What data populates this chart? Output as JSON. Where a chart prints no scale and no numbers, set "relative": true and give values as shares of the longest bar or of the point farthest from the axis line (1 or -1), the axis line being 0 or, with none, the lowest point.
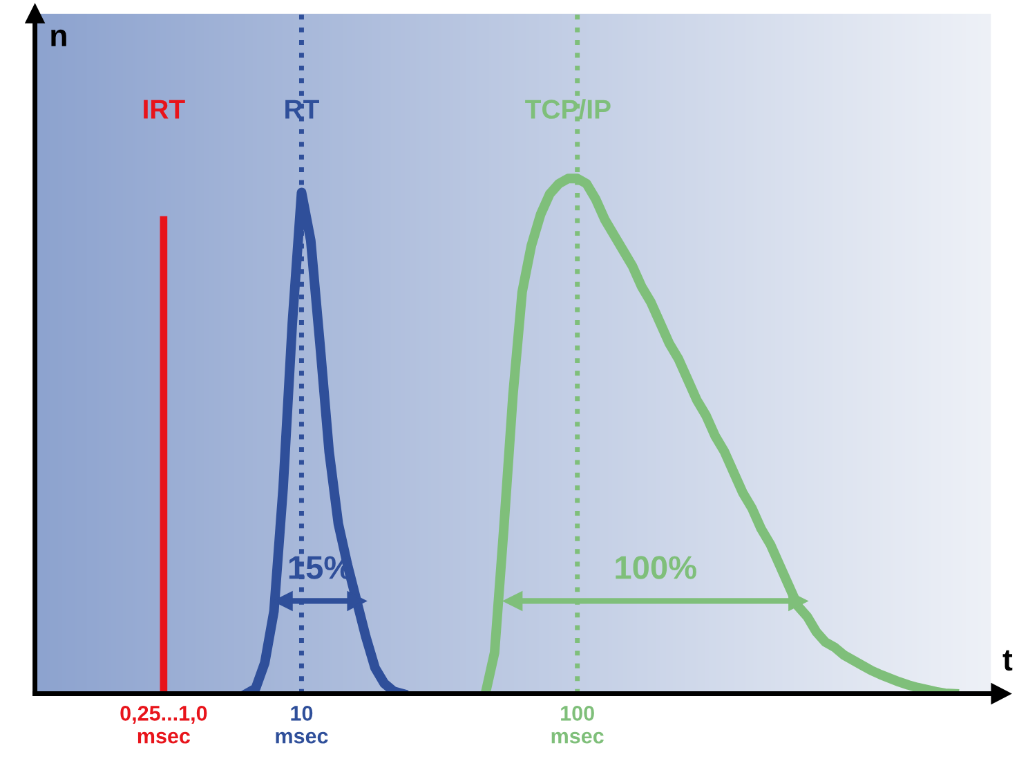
{
  "chart_data": {
    "type": "line",
    "relative": true,
    "xlabel": "t",
    "ylabel": "n",
    "grid": false,
    "marker": "none",
    "line_style": "solid",
    "categories": [
      null,
      null,
      null,
      null,
      null,
      null,
      null,
      null,
      null,
      null,
      null,
      "0,25...1,0\nmsec",
      null,
      null,
      null,
      null,
      null,
      null,
      null,
      null,
      null,
      null,
      null,
      null,
      null,
      null,
      "10\nmsec",
      null,
      null,
      null,
      null,
      null,
      null,
      null,
      null,
      null,
      null,
      null,
      null,
      null,
      null,
      null,
      null,
      null,
      null,
      null,
      null,
      null,
      null,
      null,
      null,
      null,
      null,
      null,
      null,
      null,
      "100\nmsec",
      null,
      null,
      null,
      null,
      null,
      null,
      null,
      null,
      null,
      null,
      null,
      null,
      null,
      null,
      null,
      null,
      null,
      null,
      null,
      null,
      null,
      null,
      null,
      null,
      null,
      null,
      null,
      null,
      null,
      null,
      null,
      null,
      null,
      null,
      null,
      null,
      null,
      null,
      null,
      null,
      null,
      null,
      null
    ],
    "series": [
      {
        "name": "IRT",
        "type": "bar",
        "color": "#e8141b",
        "values": [
          null,
          null,
          null,
          null,
          null,
          null,
          null,
          null,
          null,
          null,
          null,
          0.927,
          null,
          null,
          null,
          null,
          null,
          null,
          null,
          null,
          null,
          null,
          null,
          null,
          null,
          null,
          null,
          null,
          null,
          null,
          null,
          null,
          null,
          null,
          null,
          null,
          null,
          null,
          null,
          null,
          null,
          null,
          null,
          null,
          null,
          null,
          null,
          null,
          null,
          null,
          null,
          null,
          null,
          null,
          null,
          null,
          null,
          null,
          null,
          null,
          null,
          null,
          null,
          null,
          null,
          null,
          null,
          null,
          null,
          null,
          null,
          null,
          null,
          null,
          null,
          null,
          null,
          null,
          null,
          null,
          null,
          null,
          null,
          null,
          null,
          null,
          null,
          null,
          null,
          null,
          null,
          null,
          null,
          null,
          null,
          null,
          null,
          null,
          null,
          null
        ]
      },
      {
        "name": "RT",
        "color": "#2f4f9a",
        "values": [
          null,
          null,
          null,
          null,
          null,
          null,
          null,
          null,
          null,
          null,
          null,
          null,
          null,
          null,
          null,
          null,
          null,
          null,
          null,
          null,
          0,
          0.01,
          0.06,
          0.16,
          0.4,
          0.72,
          0.973,
          0.88,
          0.68,
          0.47,
          0.33,
          0.25,
          0.18,
          0.11,
          0.05,
          0.02,
          0.005,
          0,
          null,
          null,
          null,
          null,
          null,
          null,
          null,
          null,
          null,
          null,
          null,
          null,
          null,
          null,
          null,
          null,
          null,
          null,
          null,
          null,
          null,
          null,
          null,
          null,
          null,
          null,
          null,
          null,
          null,
          null,
          null,
          null,
          null,
          null,
          null,
          null,
          null,
          null,
          null,
          null,
          null,
          null,
          null,
          null,
          null,
          null,
          null,
          null,
          null,
          null,
          null,
          null,
          null,
          null,
          null,
          null,
          null,
          null,
          null,
          null,
          null,
          null
        ]
      },
      {
        "name": "TCP/IP",
        "color": "#7fbf7a",
        "values": [
          null,
          null,
          null,
          null,
          null,
          null,
          null,
          null,
          null,
          null,
          null,
          null,
          null,
          null,
          null,
          null,
          null,
          null,
          null,
          null,
          null,
          null,
          null,
          null,
          null,
          null,
          null,
          null,
          null,
          null,
          null,
          null,
          null,
          null,
          null,
          null,
          null,
          null,
          null,
          null,
          null,
          null,
          null,
          null,
          null,
          null,
          0,
          0.08,
          0.32,
          0.58,
          0.78,
          0.87,
          0.93,
          0.97,
          0.99,
          1.0,
          1.0,
          0.99,
          0.96,
          0.92,
          0.89,
          0.86,
          0.83,
          0.79,
          0.76,
          0.72,
          0.68,
          0.65,
          0.61,
          0.57,
          0.54,
          0.5,
          0.47,
          0.43,
          0.39,
          0.36,
          0.32,
          0.29,
          0.25,
          0.21,
          0.17,
          0.15,
          0.12,
          0.1,
          0.09,
          0.075,
          0.065,
          0.055,
          0.045,
          0.037,
          0.03,
          0.023,
          0.017,
          0.012,
          0.008,
          0.004,
          0.001,
          0,
          null,
          null
        ]
      },
      {
        "color": "#2f4f9a",
        "values": [
          null,
          null,
          null,
          null,
          null,
          null,
          null,
          null,
          null,
          null,
          null,
          null,
          null,
          null,
          null,
          null,
          null,
          null,
          null,
          null,
          null,
          null,
          null,
          null,
          0.18,
          0.18,
          0.18,
          0.18,
          0.18,
          0.18,
          0.18,
          0.18,
          0.18,
          null,
          null,
          null,
          null,
          null,
          null,
          null,
          null,
          null,
          null,
          null,
          null,
          null,
          null,
          null,
          null,
          null,
          null,
          null,
          null,
          null,
          null,
          null,
          null,
          null,
          null,
          null,
          null,
          null,
          null,
          null,
          null,
          null,
          null,
          null,
          null,
          null,
          null,
          null,
          null,
          null,
          null,
          null,
          null,
          null,
          null,
          null,
          null,
          null,
          null,
          null,
          null,
          null,
          null,
          null,
          null,
          null,
          null,
          null,
          null,
          null,
          null,
          null,
          null,
          null,
          null,
          null
        ]
      },
      {
        "color": "#7fbf7a",
        "values": [
          null,
          null,
          null,
          null,
          null,
          null,
          null,
          null,
          null,
          null,
          null,
          null,
          null,
          null,
          null,
          null,
          null,
          null,
          null,
          null,
          null,
          null,
          null,
          null,
          null,
          null,
          null,
          null,
          null,
          null,
          null,
          null,
          null,
          null,
          null,
          null,
          null,
          null,
          null,
          null,
          null,
          null,
          null,
          null,
          null,
          null,
          null,
          null,
          null,
          0.18,
          0.18,
          0.18,
          0.18,
          0.18,
          0.18,
          0.18,
          0.18,
          0.18,
          0.18,
          0.18,
          0.18,
          0.18,
          0.18,
          0.18,
          0.18,
          0.18,
          0.18,
          0.18,
          0.18,
          0.18,
          0.18,
          0.18,
          0.18,
          0.18,
          0.18,
          0.18,
          0.18,
          0.18,
          0.18,
          0.18,
          0.18,
          null,
          null,
          null,
          null,
          null,
          null,
          null,
          null,
          null,
          null,
          null,
          null,
          null,
          null,
          null,
          null,
          null,
          null,
          null
        ]
      }
    ],
    "ref_lines": [
      {
        "axis": "x",
        "value": "10\nmsec",
        "color": "#2f4f9a",
        "line_style": "dotted"
      },
      {
        "axis": "x",
        "value": "100\nmsec",
        "color": "#7fbf7a",
        "line_style": "dotted"
      }
    ],
    "annotations": [
      "15%",
      "100%"
    ]
  }
}
